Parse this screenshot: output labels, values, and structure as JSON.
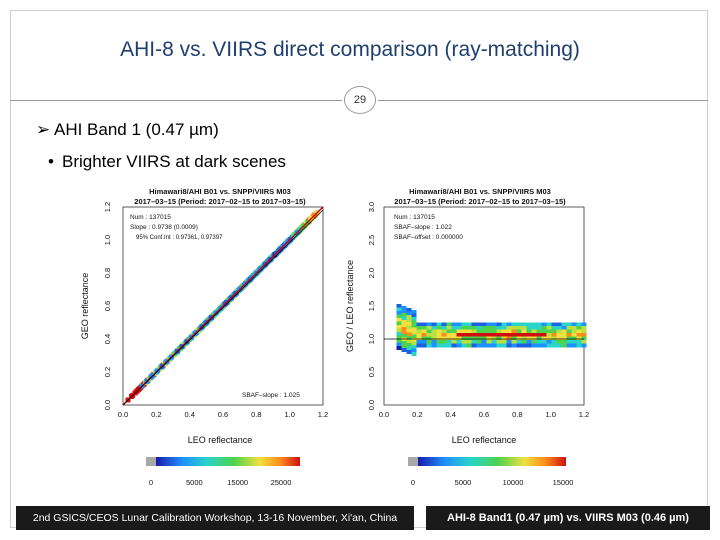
{
  "slide": {
    "title": "AHI-8 vs. VIIRS direct comparison (ray-matching)",
    "page_number": "29",
    "bullet_level1": "AHI Band 1 (0.47 µm)",
    "bullet_level2": "Brighter VIIRS at dark scenes",
    "footer_left": "2nd GSICS/CEOS Lunar Calibration Workshop, 13-16 November, Xi'an, China",
    "footer_right": "AHI-8 Band1 (0.47 µm) vs. VIIRS M03 (0.46 µm)"
  },
  "plot_left": {
    "title_line1": "Himawari8/AHI B01 vs. SNPP/VIIRS M03",
    "title_line2": "2017–03–15 (Period: 2017–02–15 to 2017–03–15)",
    "stat_num": "Num     :  137015",
    "stat_slope": "Slope   :  0.9738 (0.0009)",
    "stat_conf": "95% Conf.Int : 0.97361, 0.97397",
    "sbaf_label": "SBAF–slope  :  1.025",
    "xlabel": "LEO reflectance",
    "ylabel": "GEO reflectance",
    "x_ticks": [
      "0.0",
      "0.2",
      "0.4",
      "0.6",
      "0.8",
      "1.0",
      "1.2"
    ],
    "y_ticks": [
      "0.0",
      "0.2",
      "0.4",
      "0.6",
      "0.8",
      "1.0",
      "1.2"
    ],
    "colorbar_ticks": [
      "0",
      "5000",
      "15000",
      "25000"
    ]
  },
  "plot_right": {
    "title_line1": "Himawari8/AHI B01 vs. SNPP/VIIRS M03",
    "title_line2": "2017–03–15 (Period: 2017–02–15 to 2017–03–15)",
    "stat_num": "Num          :  137015",
    "stat_slope": "SBAF–slope  :  1.022",
    "stat_offset": "SBAF–offset  :  0.000000",
    "xlabel": "LEO reflectance",
    "ylabel": "GEO / LEO reflectance",
    "x_ticks": [
      "0.0",
      "0.2",
      "0.4",
      "0.6",
      "0.8",
      "1.0",
      "1.2"
    ],
    "y_ticks": [
      "0.0",
      "0.5",
      "1.0",
      "1.5",
      "2.0",
      "2.5",
      "3.0"
    ],
    "colorbar_ticks": [
      "0",
      "5000",
      "10000",
      "15000"
    ]
  },
  "colors": {
    "title": "#1f3f6e",
    "footer_bg": "#1a1a1a",
    "regression_line": "#cc0000"
  }
}
